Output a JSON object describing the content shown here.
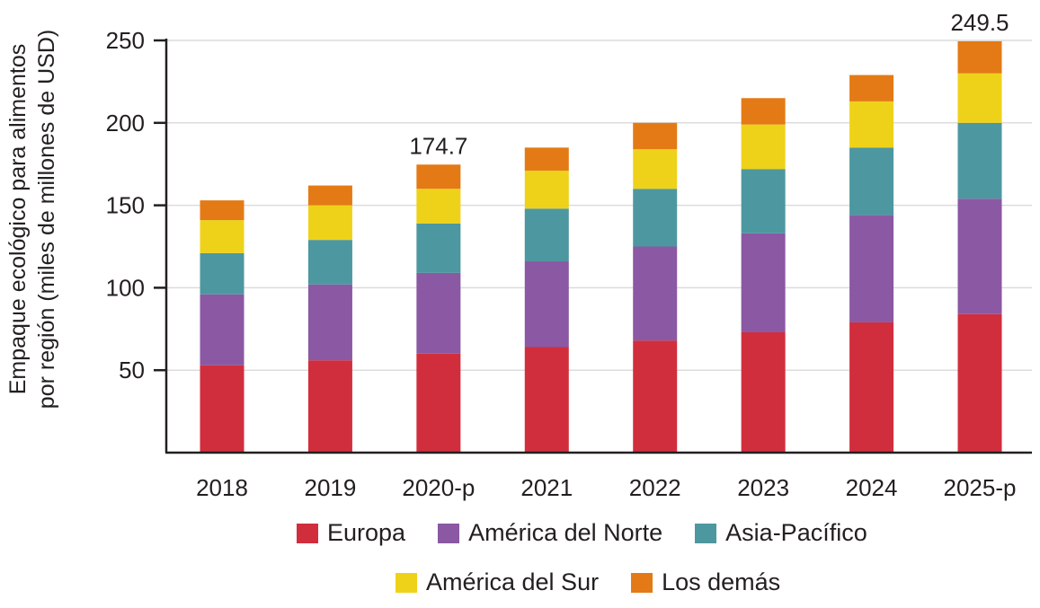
{
  "chart_data": {
    "type": "bar",
    "stacked": true,
    "categories": [
      "2018",
      "2019",
      "2020-p",
      "2021",
      "2022",
      "2023",
      "2024",
      "2025-p"
    ],
    "series": [
      {
        "name": "Europa",
        "color": "#d12e3d",
        "values": [
          53,
          56,
          60,
          64,
          68,
          73,
          79,
          84
        ]
      },
      {
        "name": "América del Norte",
        "color": "#8b58a3",
        "values": [
          43,
          46,
          49,
          52,
          57,
          60,
          65,
          70
        ]
      },
      {
        "name": "Asia-Pacífico",
        "color": "#4d97a0",
        "values": [
          25,
          27,
          30,
          32,
          35,
          39,
          41,
          46
        ]
      },
      {
        "name": "América del Sur",
        "color": "#eed21a",
        "values": [
          20,
          21,
          21,
          23,
          24,
          27,
          28,
          30
        ]
      },
      {
        "name": "Los demás",
        "color": "#e47a16",
        "values": [
          12,
          12,
          14.7,
          14,
          16,
          16,
          16,
          19.5
        ]
      }
    ],
    "totals": [
      153,
      162,
      174.7,
      185,
      200,
      215,
      229,
      249.5
    ],
    "annotations": [
      {
        "category": "2020-p",
        "text": "174.7"
      },
      {
        "category": "2025-p",
        "text": "249.5"
      }
    ],
    "ylabel_line1": "Empaque ecológico para alimentos",
    "ylabel_line2": "por región (miles de millones de USD)",
    "yticks": [
      50,
      100,
      150,
      200,
      250
    ],
    "ylim": [
      0,
      250
    ],
    "grid": true,
    "legend_position": "bottom"
  }
}
